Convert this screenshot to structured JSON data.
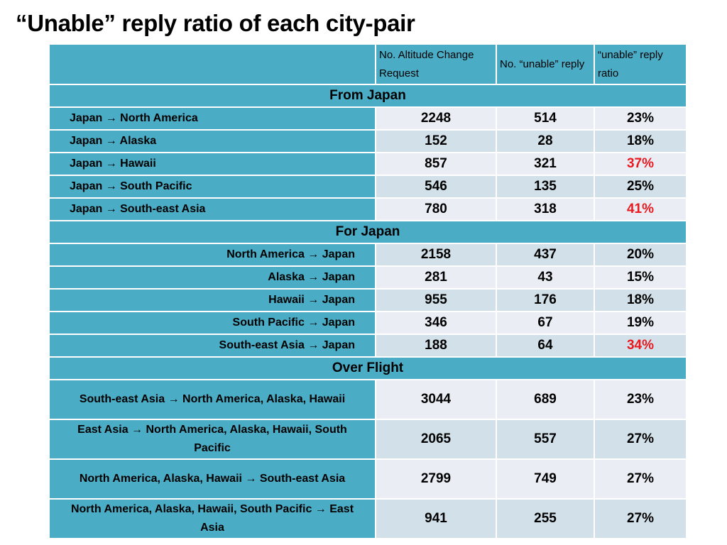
{
  "title": "“Unable” reply ratio of each city-pair",
  "columns": {
    "route": "",
    "requests": "No. Altitude Change Request",
    "unable": "No. “unable” reply",
    "ratio": "“unable” reply ratio"
  },
  "colors": {
    "header": "#4bacc6",
    "row_light": "#eaeef4",
    "row_dark": "#d2e1e9",
    "highlight": "#e8191f"
  },
  "sections": [
    {
      "label": "From Japan",
      "rows": [
        {
          "route": "Japan → North America",
          "requests": "2248",
          "unable": "514",
          "ratio": "23%",
          "highlight": false
        },
        {
          "route": "Japan → Alaska",
          "requests": "152",
          "unable": "28",
          "ratio": "18%",
          "highlight": false
        },
        {
          "route": "Japan → Hawaii",
          "requests": "857",
          "unable": "321",
          "ratio": "37%",
          "highlight": true
        },
        {
          "route": "Japan → South Pacific",
          "requests": "546",
          "unable": "135",
          "ratio": "25%",
          "highlight": false
        },
        {
          "route": "Japan → South-east Asia",
          "requests": "780",
          "unable": "318",
          "ratio": "41%",
          "highlight": true
        }
      ]
    },
    {
      "label": "For Japan",
      "rows": [
        {
          "route": "North America → Japan",
          "requests": "2158",
          "unable": "437",
          "ratio": "20%",
          "highlight": false
        },
        {
          "route": "Alaska → Japan",
          "requests": "281",
          "unable": "43",
          "ratio": "15%",
          "highlight": false
        },
        {
          "route": "Hawaii → Japan",
          "requests": "955",
          "unable": "176",
          "ratio": "18%",
          "highlight": false
        },
        {
          "route": "South Pacific → Japan",
          "requests": "346",
          "unable": "67",
          "ratio": "19%",
          "highlight": false
        },
        {
          "route": "South-east Asia → Japan",
          "requests": "188",
          "unable": "64",
          "ratio": "34%",
          "highlight": true
        }
      ]
    },
    {
      "label": "Over Flight",
      "rows": [
        {
          "route": "South-east Asia → North America, Alaska, Hawaii",
          "requests": "3044",
          "unable": "689",
          "ratio": "23%",
          "highlight": false
        },
        {
          "route": "East Asia → North America, Alaska, Hawaii, South Pacific",
          "requests": "2065",
          "unable": "557",
          "ratio": "27%",
          "highlight": false
        },
        {
          "route": "North America, Alaska, Hawaii → South-east Asia",
          "requests": "2799",
          "unable": "749",
          "ratio": "27%",
          "highlight": false
        },
        {
          "route": "North America, Alaska, Hawaii, South Pacific → East Asia",
          "requests": "941",
          "unable": "255",
          "ratio": "27%",
          "highlight": false
        }
      ]
    }
  ]
}
